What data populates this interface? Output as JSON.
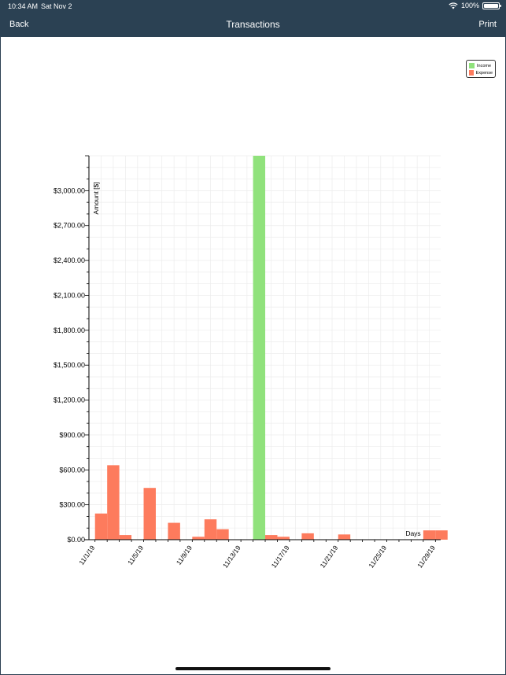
{
  "status_bar": {
    "time": "10:34 AM",
    "date": "Sat Nov 2",
    "battery": "100%"
  },
  "nav": {
    "back_label": "Back",
    "title": "Transactions",
    "print_label": "Print"
  },
  "legend": {
    "income_label": "Income",
    "expense_label": "Expense"
  },
  "colors": {
    "income": "#90e27c",
    "expense": "#fd7b5d",
    "navbar": "#2b4153"
  },
  "chart_data": {
    "type": "bar",
    "ylabel": "Amount [$]",
    "xlabel": "Days",
    "ylim": [
      0,
      3300
    ],
    "yticks": [
      "$0.00",
      "$300.00",
      "$600.00",
      "$900.00",
      "$1,200.00",
      "$1,500.00",
      "$1,800.00",
      "$2,100.00",
      "$2,400.00",
      "$2,700.00",
      "$3,000.00"
    ],
    "yticks_values": [
      0,
      300,
      600,
      900,
      1200,
      1500,
      1800,
      2100,
      2400,
      2700,
      3000
    ],
    "xticks": [
      "11/1/19",
      "11/5/19",
      "11/9/19",
      "11/13/19",
      "11/17/19",
      "11/21/19",
      "11/25/19",
      "11/29/19"
    ],
    "xticks_days": [
      1,
      5,
      9,
      13,
      17,
      21,
      25,
      29
    ],
    "x_day_range": [
      0.5,
      30
    ],
    "grid": true,
    "legend_position": "top-right",
    "series": [
      {
        "name": "Income",
        "color": "#90e27c",
        "points": [
          {
            "day": 14,
            "value": 3300
          }
        ]
      },
      {
        "name": "Expense",
        "color": "#fd7b5d",
        "points": [
          {
            "day": 1,
            "value": 225
          },
          {
            "day": 2,
            "value": 640
          },
          {
            "day": 3,
            "value": 40
          },
          {
            "day": 5,
            "value": 445
          },
          {
            "day": 7,
            "value": 145
          },
          {
            "day": 9,
            "value": 25
          },
          {
            "day": 10,
            "value": 175
          },
          {
            "day": 11,
            "value": 90
          },
          {
            "day": 15,
            "value": 40
          },
          {
            "day": 16,
            "value": 25
          },
          {
            "day": 18,
            "value": 55
          },
          {
            "day": 21,
            "value": 45
          },
          {
            "day": 28,
            "value": 80
          },
          {
            "day": 29,
            "value": 80
          }
        ]
      }
    ]
  }
}
